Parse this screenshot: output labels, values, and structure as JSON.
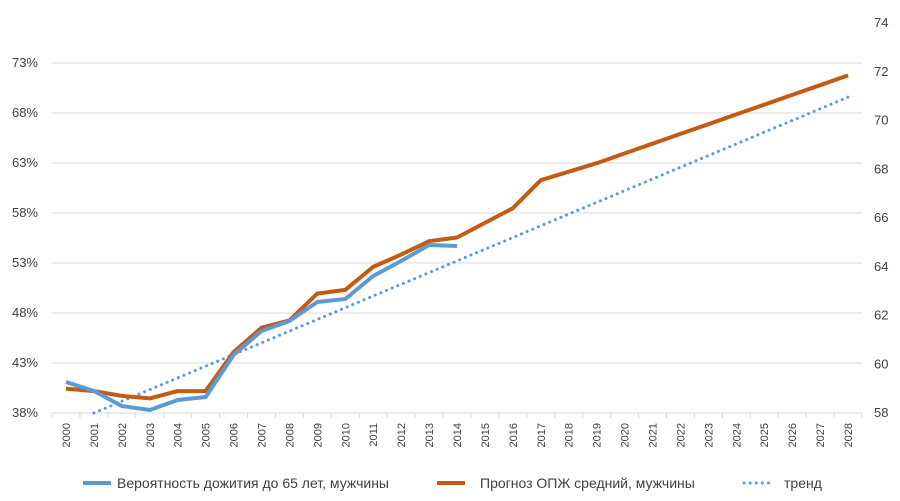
{
  "chart_data": {
    "type": "line",
    "title": "",
    "x": [
      "2000",
      "2001",
      "2002",
      "2003",
      "2004",
      "2005",
      "2006",
      "2007",
      "2008",
      "2009",
      "2010",
      "2011",
      "2012",
      "2013",
      "2014",
      "2015",
      "2016",
      "2017",
      "2018",
      "2019",
      "2020",
      "2021",
      "2022",
      "2023",
      "2024",
      "2025",
      "2026",
      "2027",
      "2028"
    ],
    "y_left": {
      "ylim": [
        0.38,
        0.73
      ],
      "ticks": [
        0.38,
        0.43,
        0.48,
        0.53,
        0.58,
        0.63,
        0.68,
        0.73
      ],
      "tick_labels": [
        "38%",
        "43%",
        "48%",
        "53%",
        "58%",
        "63%",
        "68%",
        "73%"
      ]
    },
    "y_right": {
      "ylim": [
        58,
        74
      ],
      "ticks": [
        58,
        60,
        62,
        64,
        66,
        68,
        70,
        72,
        74
      ],
      "tick_labels": [
        "58",
        "60",
        "62",
        "64",
        "66",
        "68",
        "70",
        "72",
        "74"
      ]
    },
    "grid": "horizontal",
    "legend_position": "bottom",
    "series": [
      {
        "name": "Вероятность дожития до 65 лет, мужчины",
        "axis": "left",
        "color": "#5b9bd5",
        "style": "solid",
        "values": [
          0.411,
          0.402,
          0.387,
          0.383,
          0.393,
          0.396,
          0.438,
          0.462,
          0.472,
          0.491,
          0.494,
          0.517,
          0.532,
          0.548,
          0.547,
          null,
          null,
          null,
          null,
          null,
          null,
          null,
          null,
          null,
          null,
          null,
          null,
          null,
          null
        ]
      },
      {
        "name": "Прогноз ОПЖ средний, мужчины",
        "axis": "right",
        "color": "#c55a11",
        "style": "solid",
        "values": [
          59.0,
          58.9,
          58.7,
          58.6,
          58.9,
          58.9,
          60.5,
          61.5,
          61.8,
          62.9,
          63.05,
          64.0,
          64.5,
          65.05,
          65.2,
          65.8,
          66.4,
          67.55,
          67.9,
          68.25,
          68.65,
          69.05,
          69.45,
          69.85,
          70.25,
          70.65,
          71.05,
          71.45,
          71.85
        ]
      },
      {
        "name": "тренд",
        "axis": "left",
        "color": "#5b9bd5",
        "style": "dotted",
        "values": [
          null,
          0.38,
          0.3917,
          0.4034,
          0.4151,
          0.4268,
          0.4385,
          0.4502,
          0.4619,
          0.4736,
          0.4853,
          0.497,
          0.5087,
          0.5204,
          0.5321,
          0.5438,
          0.5555,
          0.5672,
          0.5789,
          0.5906,
          0.6023,
          0.614,
          0.6257,
          0.6374,
          0.6491,
          0.6608,
          0.6725,
          0.6842,
          0.6959
        ]
      }
    ]
  }
}
